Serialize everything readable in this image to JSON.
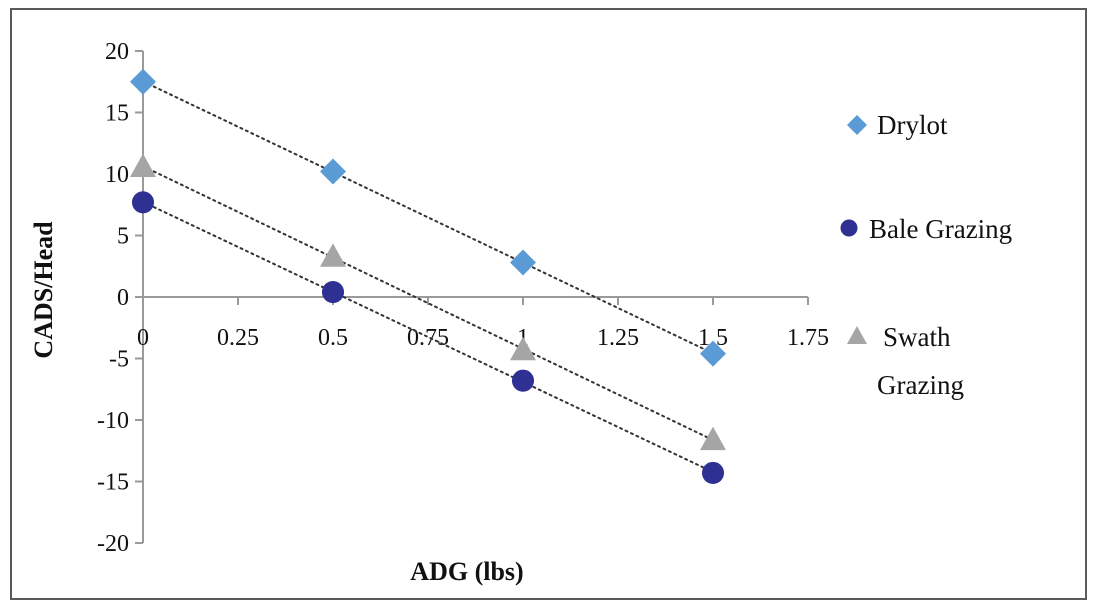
{
  "chart_data": {
    "type": "scatter",
    "xlabel": "ADG (lbs)",
    "ylabel": "CADS/Head",
    "xlim": [
      0,
      1.75
    ],
    "ylim": [
      -20,
      20
    ],
    "xticks": [
      "0",
      "0.25",
      "0.5",
      "0.75",
      "1",
      "1.25",
      "1.5",
      "1.75"
    ],
    "yticks": [
      "20",
      "15",
      "10",
      "5",
      "0",
      "-5",
      "-10",
      "-15",
      "-20"
    ],
    "legend_position": "right",
    "trendlines": "linear, dotted",
    "series": [
      {
        "name": "Drylot",
        "marker": "diamond",
        "color": "#5b9bd5",
        "x": [
          0,
          0.5,
          1,
          1.5
        ],
        "y": [
          17.5,
          10.2,
          2.8,
          -4.6
        ]
      },
      {
        "name": "Bale Grazing",
        "marker": "circle",
        "color": "#2e3192",
        "x": [
          0,
          0.5,
          1,
          1.5
        ],
        "y": [
          7.7,
          0.4,
          -6.8,
          -14.3
        ]
      },
      {
        "name": "Swath Grazing",
        "marker": "triangle",
        "color": "#a5a5a5",
        "x": [
          0,
          0.5,
          1,
          1.5
        ],
        "y": [
          10.6,
          3.3,
          -4.3,
          -11.6
        ]
      }
    ]
  }
}
